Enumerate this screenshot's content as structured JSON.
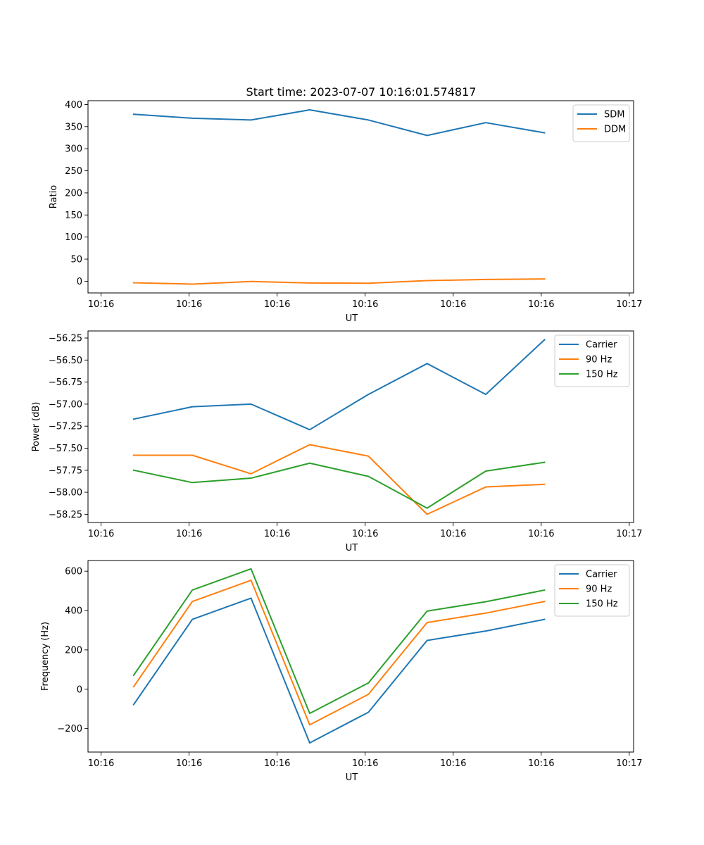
{
  "figure": {
    "title": "Start time: 2023-07-07 10:16:01.574817"
  },
  "chart_data": [
    {
      "type": "line",
      "title": "Start time: 2023-07-07 10:16:01.574817",
      "xlabel": "UT",
      "ylabel": "Ratio",
      "x": [
        1,
        2,
        3,
        4,
        5,
        6,
        7,
        8
      ],
      "xlim": [
        0.2222,
        9.5185
      ],
      "x_ticks": [
        0.4444,
        1.9444,
        3.4444,
        4.9444,
        6.4444,
        7.9444,
        9.4444
      ],
      "x_tick_labels": [
        "10:16",
        "10:16",
        "10:16",
        "10:16",
        "10:16",
        "10:16",
        "10:17"
      ],
      "ylim": [
        -26.5,
        408.7
      ],
      "y_ticks": [
        0,
        50,
        100,
        150,
        200,
        250,
        300,
        350,
        400
      ],
      "y_tick_labels": [
        "0",
        "50",
        "100",
        "150",
        "200",
        "250",
        "300",
        "350",
        "400"
      ],
      "legend": "top-right",
      "series": [
        {
          "name": "SDM",
          "color": "#1f77b4",
          "values": [
            378,
            369,
            365,
            388,
            365,
            330,
            359,
            336
          ]
        },
        {
          "name": "DDM",
          "color": "#ff7f0e",
          "values": [
            -3.5,
            -6.5,
            -0.6,
            -4,
            -4.5,
            1.4,
            4,
            5.2
          ]
        }
      ]
    },
    {
      "type": "line",
      "xlabel": "UT",
      "ylabel": "Power (dB)",
      "x": [
        1,
        2,
        3,
        4,
        5,
        6,
        7,
        8
      ],
      "xlim": [
        0.2222,
        9.5185
      ],
      "x_ticks": [
        0.4444,
        1.9444,
        3.4444,
        4.9444,
        6.4444,
        7.9444,
        9.4444
      ],
      "x_tick_labels": [
        "10:16",
        "10:16",
        "10:16",
        "10:16",
        "10:16",
        "10:16",
        "10:17"
      ],
      "ylim": [
        -58.343,
        -56.17
      ],
      "y_ticks": [
        -58.25,
        -58.0,
        -57.75,
        -57.5,
        -57.25,
        -57.0,
        -56.75,
        -56.5,
        -56.25
      ],
      "y_tick_labels": [
        "−58.25",
        "−58.00",
        "−57.75",
        "−57.50",
        "−57.25",
        "−57.00",
        "−56.75",
        "−56.50",
        "−56.25"
      ],
      "legend": "top-right",
      "series": [
        {
          "name": "Carrier",
          "color": "#1f77b4",
          "values": [
            -57.17,
            -57.03,
            -57.0,
            -57.29,
            -56.89,
            -56.54,
            -56.89,
            -56.27
          ]
        },
        {
          "name": "90 Hz",
          "color": "#ff7f0e",
          "values": [
            -57.58,
            -57.58,
            -57.79,
            -57.46,
            -57.59,
            -58.25,
            -57.94,
            -57.91
          ]
        },
        {
          "name": "150 Hz",
          "color": "#2ca02c",
          "values": [
            -57.75,
            -57.89,
            -57.84,
            -57.67,
            -57.82,
            -58.18,
            -57.76,
            -57.66
          ]
        }
      ]
    },
    {
      "type": "line",
      "xlabel": "UT",
      "ylabel": "Frequency (Hz)",
      "x": [
        1,
        2,
        3,
        4,
        5,
        6,
        7,
        8
      ],
      "xlim": [
        0.2222,
        9.5185
      ],
      "x_ticks": [
        0.4444,
        1.9444,
        3.4444,
        4.9444,
        6.4444,
        7.9444,
        9.4444
      ],
      "x_tick_labels": [
        "10:16",
        "10:16",
        "10:16",
        "10:16",
        "10:16",
        "10:16",
        "10:17"
      ],
      "ylim": [
        -319.4,
        654.3
      ],
      "y_ticks": [
        -200,
        0,
        200,
        400,
        600
      ],
      "y_tick_labels": [
        "−200",
        "0",
        "200",
        "400",
        "600"
      ],
      "legend": "top-right",
      "series": [
        {
          "name": "Carrier",
          "color": "#1f77b4",
          "values": [
            -78,
            355,
            463,
            -273,
            -117,
            248,
            296,
            355
          ]
        },
        {
          "name": "90 Hz",
          "color": "#ff7f0e",
          "values": [
            13,
            446,
            554,
            -181,
            -26,
            339,
            387,
            446
          ]
        },
        {
          "name": "150 Hz",
          "color": "#2ca02c",
          "values": [
            71,
            504,
            612,
            -123,
            32,
            397,
            445,
            504
          ]
        }
      ]
    }
  ]
}
